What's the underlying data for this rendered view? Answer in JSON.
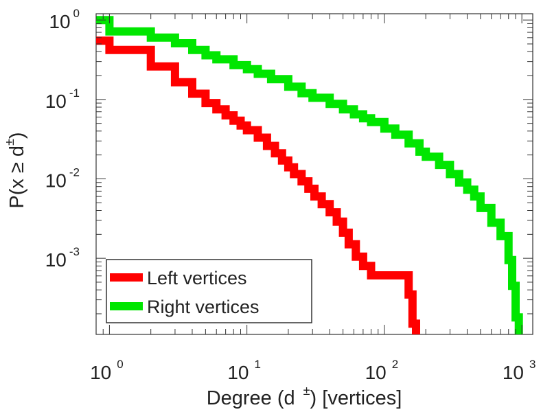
{
  "chart_data": {
    "type": "line",
    "subtype": "step-ccdf",
    "title": "",
    "xlabel": {
      "prefix": "Degree (d",
      "sup": "±",
      "suffix": ") [vertices]"
    },
    "ylabel": {
      "prefix": "P(x ≥ d",
      "sup": "±",
      "suffix": ")"
    },
    "x_scale": "log",
    "y_scale": "log",
    "xlim": [
      0.8,
      1200
    ],
    "ylim": [
      0.00011,
      1.2
    ],
    "x_ticks": [
      {
        "value": 1,
        "base": "10",
        "exp": "0"
      },
      {
        "value": 10,
        "base": "10",
        "exp": "1"
      },
      {
        "value": 100,
        "base": "10",
        "exp": "2"
      },
      {
        "value": 1000,
        "base": "10",
        "exp": "3"
      }
    ],
    "y_ticks": [
      {
        "value": 1,
        "base": "10",
        "exp": "0"
      },
      {
        "value": 0.1,
        "base": "10",
        "exp": "-1"
      },
      {
        "value": 0.01,
        "base": "10",
        "exp": "-2"
      },
      {
        "value": 0.001,
        "base": "10",
        "exp": "-3"
      }
    ],
    "grid": false,
    "legend_position": "bottom-left",
    "series": [
      {
        "name": "Left vertices",
        "color": "#ff0000",
        "x": [
          0.7,
          1,
          2,
          3,
          4,
          5,
          6,
          7,
          8,
          9,
          10,
          12,
          14,
          16,
          18,
          20,
          22,
          25,
          28,
          31,
          35,
          40,
          45,
          50,
          55,
          62,
          70,
          80,
          100,
          130,
          150,
          160,
          170
        ],
        "y": [
          0.55,
          0.42,
          0.26,
          0.165,
          0.118,
          0.09,
          0.075,
          0.063,
          0.054,
          0.047,
          0.041,
          0.033,
          0.026,
          0.021,
          0.017,
          0.014,
          0.0115,
          0.0093,
          0.0075,
          0.006,
          0.0048,
          0.0038,
          0.0029,
          0.0021,
          0.0015,
          0.00105,
          0.0008,
          0.00061,
          0.00061,
          0.00061,
          0.00035,
          0.00015,
          0.00011
        ]
      },
      {
        "name": "Right vertices",
        "color": "#00e600",
        "x": [
          0.7,
          1,
          2,
          3,
          4,
          5,
          6,
          8,
          10,
          12,
          15,
          20,
          25,
          30,
          40,
          50,
          60,
          70,
          80,
          100,
          120,
          150,
          180,
          200,
          250,
          300,
          350,
          400,
          450,
          500,
          600,
          700,
          800,
          850,
          900,
          950
        ],
        "y": [
          1.0,
          0.72,
          0.6,
          0.51,
          0.42,
          0.36,
          0.32,
          0.27,
          0.24,
          0.21,
          0.18,
          0.145,
          0.12,
          0.105,
          0.088,
          0.075,
          0.065,
          0.058,
          0.052,
          0.043,
          0.036,
          0.028,
          0.022,
          0.019,
          0.015,
          0.0115,
          0.009,
          0.0073,
          0.006,
          0.0043,
          0.0028,
          0.0019,
          0.00095,
          0.00045,
          0.00018,
          0.00011
        ]
      }
    ]
  }
}
